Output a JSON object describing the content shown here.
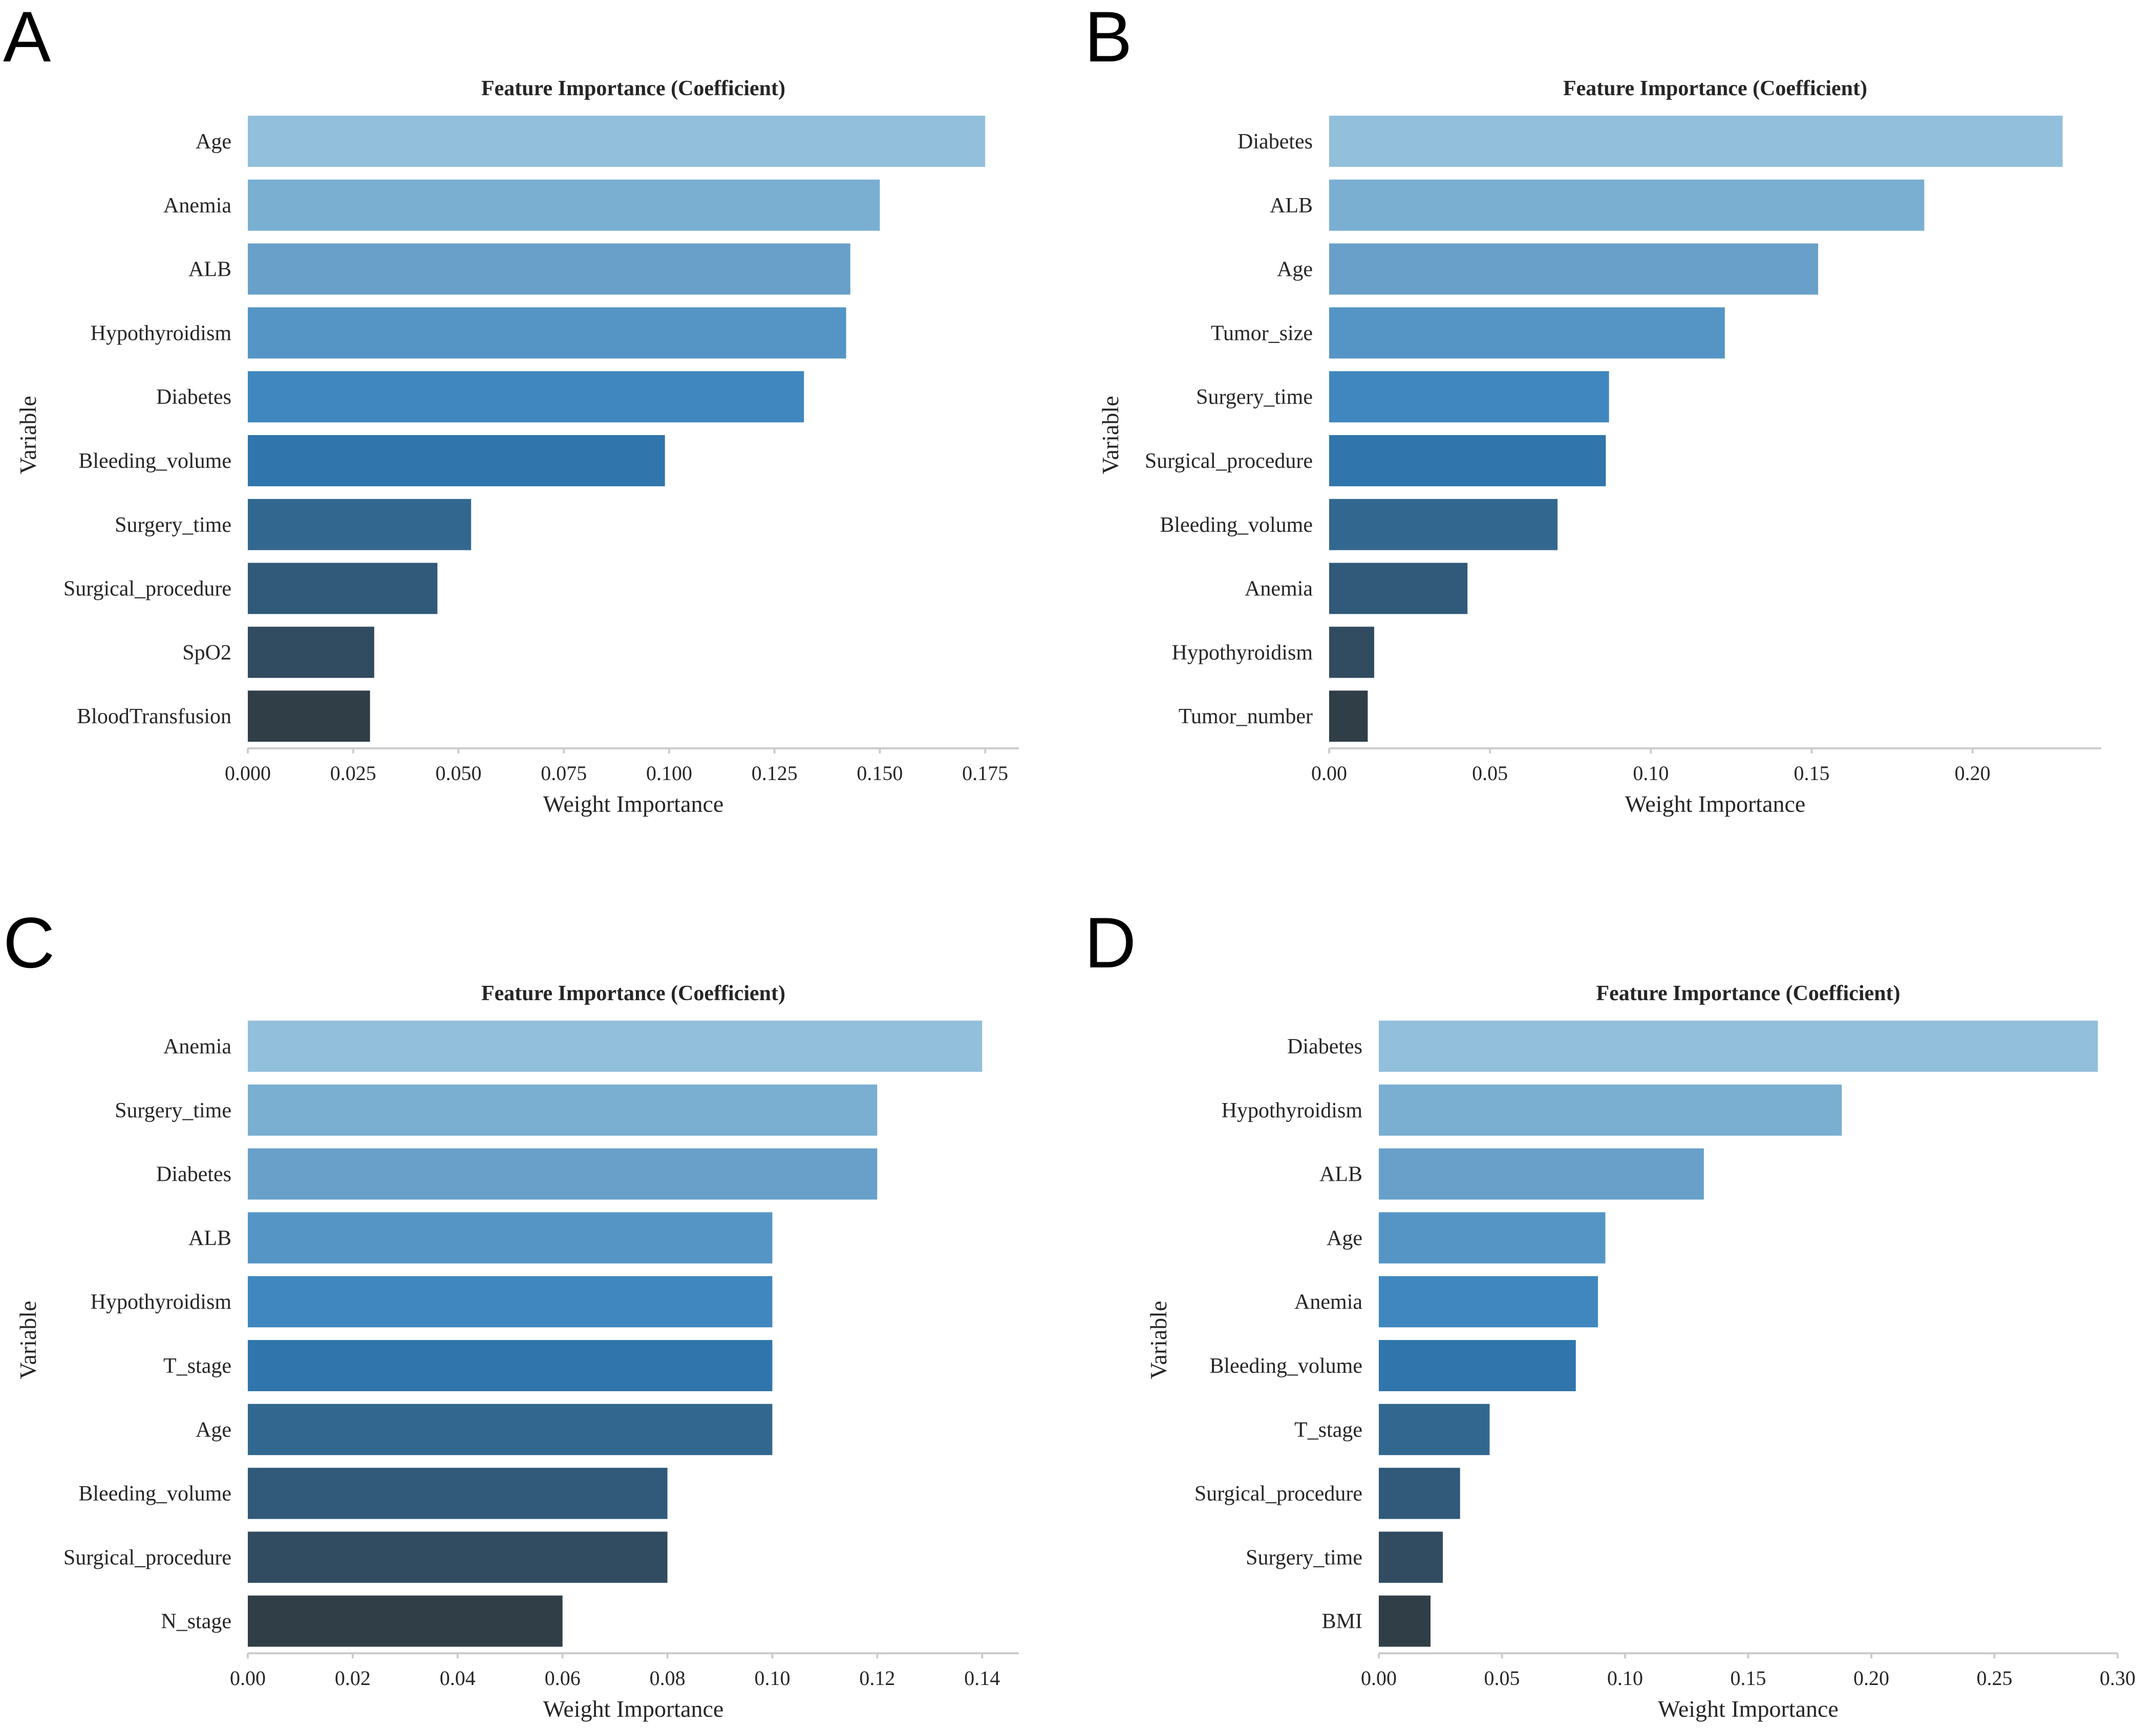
{
  "chart_data": [
    {
      "panel": "A",
      "type": "bar",
      "orientation": "horizontal",
      "title": "Feature Importance (Coefficient)",
      "xlabel": "Weight Importance",
      "ylabel": "Variable",
      "categories": [
        "Age",
        "Anemia",
        "ALB",
        "Hypothyroidism",
        "Diabetes",
        "Bleeding_volume",
        "Surgery_time",
        "Surgical_procedure",
        "SpO2",
        "BloodTransfusion"
      ],
      "values": [
        0.175,
        0.15,
        0.143,
        0.142,
        0.132,
        0.099,
        0.053,
        0.045,
        0.03,
        0.029
      ],
      "xlim": [
        0,
        0.183
      ],
      "xticks": [
        0,
        0.025,
        0.05,
        0.075,
        0.1,
        0.125,
        0.15,
        0.175
      ],
      "xtick_labels": [
        "0.000",
        "0.025",
        "0.050",
        "0.075",
        "0.100",
        "0.125",
        "0.150",
        "0.175"
      ],
      "grid": false
    },
    {
      "panel": "B",
      "type": "bar",
      "orientation": "horizontal",
      "title": "Feature Importance (Coefficient)",
      "xlabel": "Weight Importance",
      "ylabel": "Variable",
      "categories": [
        "Diabetes",
        "ALB",
        "Age",
        "Tumor_size",
        "Surgery_time",
        "Surgical_procedure",
        "Bleeding_volume",
        "Anemia",
        "Hypothyroidism",
        "Tumor_number"
      ],
      "values": [
        0.228,
        0.185,
        0.152,
        0.123,
        0.087,
        0.086,
        0.071,
        0.043,
        0.014,
        0.012
      ],
      "xlim": [
        0,
        0.24
      ],
      "xticks": [
        0,
        0.05,
        0.1,
        0.15,
        0.2
      ],
      "xtick_labels": [
        "0.00",
        "0.05",
        "0.10",
        "0.15",
        "0.20"
      ],
      "grid": false
    },
    {
      "panel": "C",
      "type": "bar",
      "orientation": "horizontal",
      "title": "Feature Importance (Coefficient)",
      "xlabel": "Weight Importance",
      "ylabel": "Variable",
      "categories": [
        "Anemia",
        "Surgery_time",
        "Diabetes",
        "ALB",
        "Hypothyroidism",
        "T_stage",
        "Age",
        "Bleeding_volume",
        "Surgical_procedure",
        "N_stage"
      ],
      "values": [
        0.14,
        0.12,
        0.12,
        0.1,
        0.1,
        0.1,
        0.1,
        0.08,
        0.08,
        0.06
      ],
      "xlim": [
        0,
        0.147
      ],
      "xticks": [
        0,
        0.02,
        0.04,
        0.06,
        0.08,
        0.1,
        0.12,
        0.14
      ],
      "xtick_labels": [
        "0.00",
        "0.02",
        "0.04",
        "0.06",
        "0.08",
        "0.10",
        "0.12",
        "0.14"
      ],
      "grid": false
    },
    {
      "panel": "D",
      "type": "bar",
      "orientation": "horizontal",
      "title": "Feature Importance (Coefficient)",
      "xlabel": "Weight Importance",
      "ylabel": "Variable",
      "categories": [
        "Diabetes",
        "Hypothyroidism",
        "ALB",
        "Age",
        "Anemia",
        "Bleeding_volume",
        "T_stage",
        "Surgical_procedure",
        "Surgery_time",
        "BMI"
      ],
      "values": [
        0.292,
        0.188,
        0.132,
        0.092,
        0.089,
        0.08,
        0.045,
        0.033,
        0.026,
        0.021
      ],
      "xlim": [
        0,
        0.3
      ],
      "xticks": [
        0,
        0.05,
        0.1,
        0.15,
        0.2,
        0.25,
        0.3
      ],
      "xtick_labels": [
        "0.00",
        "0.05",
        "0.10",
        "0.15",
        "0.20",
        "0.25",
        "0.30"
      ],
      "grid": false
    }
  ],
  "bar_colors": [
    "#92bfdb",
    "#7aafd2",
    "#68a0c9",
    "#5595c5",
    "#3f87be",
    "#3075ab",
    "#32688f",
    "#30597a",
    "#314b60",
    "#303e48"
  ]
}
